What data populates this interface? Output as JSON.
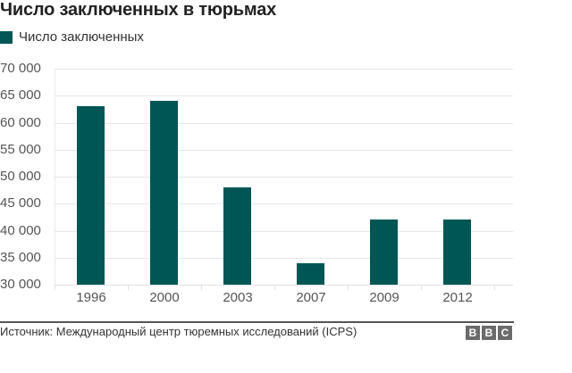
{
  "title": "Число заключенных в тюрьмах",
  "legend": {
    "label": "Число заключенных",
    "color": "#005555"
  },
  "y_axis": {
    "ticks": [
      "70 000",
      "65 000",
      "60 000",
      "55 000",
      "50 000",
      "45 000",
      "40 000",
      "35 000",
      "30 000"
    ]
  },
  "x_axis": {
    "ticks": [
      "1996",
      "2000",
      "2003",
      "2007",
      "2009",
      "2012"
    ]
  },
  "footer": {
    "source": "Источник: Международный центр тюремных исследований (ICPS)",
    "logo": [
      "B",
      "B",
      "C"
    ]
  },
  "chart_data": {
    "type": "bar",
    "title": "Число заключенных в тюрьмах",
    "categories": [
      "1996",
      "2000",
      "2003",
      "2007",
      "2009",
      "2012"
    ],
    "series": [
      {
        "name": "Число заключенных",
        "values": [
          63000,
          64000,
          48000,
          34000,
          42000,
          42000
        ],
        "color": "#005555"
      }
    ],
    "xlabel": "",
    "ylabel": "",
    "ylim": [
      30000,
      70000
    ],
    "yticks": [
      30000,
      35000,
      40000,
      45000,
      50000,
      55000,
      60000,
      65000,
      70000
    ],
    "grid": true,
    "legend_position": "top-left",
    "source": "Источник: Международный центр тюремных исследований (ICPS)"
  }
}
